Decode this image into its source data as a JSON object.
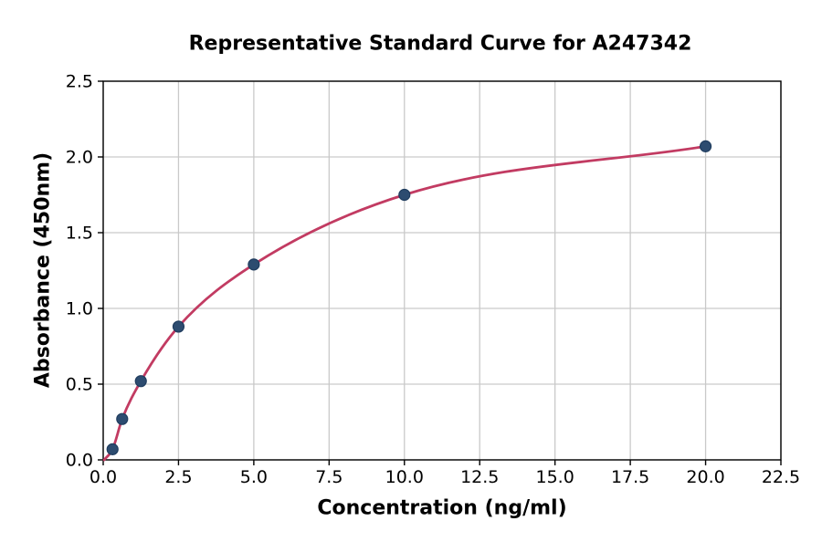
{
  "chart_data": {
    "type": "scatter",
    "title": "Representative Standard Curve for A247342",
    "xlabel": "Concentration (ng/ml)",
    "ylabel": "Absorbance (450nm)",
    "xlim": [
      0,
      22.5
    ],
    "ylim": [
      0,
      2.5
    ],
    "grid": true,
    "legend": "none",
    "xticks": [
      {
        "value": 0.0,
        "label": "0.0"
      },
      {
        "value": 2.5,
        "label": "2.5"
      },
      {
        "value": 5.0,
        "label": "5.0"
      },
      {
        "value": 7.5,
        "label": "7.5"
      },
      {
        "value": 10.0,
        "label": "10.0"
      },
      {
        "value": 12.5,
        "label": "12.5"
      },
      {
        "value": 15.0,
        "label": "15.0"
      },
      {
        "value": 17.5,
        "label": "17.5"
      },
      {
        "value": 20.0,
        "label": "20.0"
      },
      {
        "value": 22.5,
        "label": "22.5"
      }
    ],
    "yticks": [
      {
        "value": 0.0,
        "label": "0.0"
      },
      {
        "value": 0.5,
        "label": "0.5"
      },
      {
        "value": 1.0,
        "label": "1.0"
      },
      {
        "value": 1.5,
        "label": "1.5"
      },
      {
        "value": 2.0,
        "label": "2.0"
      },
      {
        "value": 2.5,
        "label": "2.5"
      }
    ],
    "points": [
      {
        "x": 0.31,
        "y": 0.07
      },
      {
        "x": 0.63,
        "y": 0.27
      },
      {
        "x": 1.25,
        "y": 0.52
      },
      {
        "x": 2.5,
        "y": 0.88
      },
      {
        "x": 5.0,
        "y": 1.29
      },
      {
        "x": 10.0,
        "y": 1.75
      },
      {
        "x": 20.0,
        "y": 2.07
      }
    ],
    "curve_start": {
      "x": 0.03,
      "y": 0.0
    },
    "colors": {
      "curve": "#c23b62",
      "marker_fill": "#2d4c70",
      "marker_edge": "#1f3c5e",
      "grid": "#c9c9c9",
      "frame": "#000000",
      "text": "#000000",
      "background": "#ffffff"
    }
  }
}
